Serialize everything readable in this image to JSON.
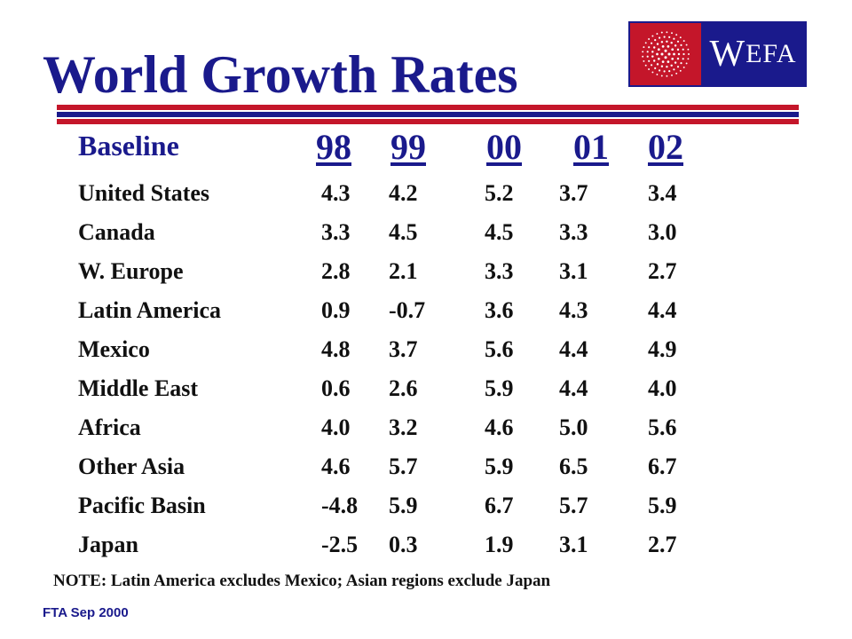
{
  "title": "World Growth Rates",
  "logo": {
    "brand_big": "W",
    "brand_small": "EFA"
  },
  "table": {
    "header_label": "Baseline",
    "years": [
      "98",
      "99",
      "00",
      "01",
      "02"
    ],
    "rows": [
      {
        "region": "United States",
        "values": [
          "4.3",
          "4.2",
          "5.2",
          "3.7",
          "3.4"
        ]
      },
      {
        "region": "Canada",
        "values": [
          "3.3",
          "4.5",
          "4.5",
          "3.3",
          "3.0"
        ]
      },
      {
        "region": "W. Europe",
        "values": [
          "2.8",
          "2.1",
          "3.3",
          "3.1",
          "2.7"
        ]
      },
      {
        "region": "Latin America",
        "values": [
          "0.9",
          "-0.7",
          "3.6",
          "4.3",
          "4.4"
        ]
      },
      {
        "region": "Mexico",
        "values": [
          "4.8",
          "3.7",
          "5.6",
          "4.4",
          "4.9"
        ]
      },
      {
        "region": "Middle East",
        "values": [
          "0.6",
          "2.6",
          "5.9",
          "4.4",
          "4.0"
        ]
      },
      {
        "region": "Africa",
        "values": [
          "4.0",
          "3.2",
          "4.6",
          "5.0",
          "5.6"
        ]
      },
      {
        "region": "Other Asia",
        "values": [
          "4.6",
          "5.7",
          "5.9",
          "6.5",
          "6.7"
        ]
      },
      {
        "region": "Pacific Basin",
        "values": [
          "-4.8",
          "5.9",
          "6.7",
          "5.7",
          "5.9"
        ]
      },
      {
        "region": "Japan",
        "values": [
          "-2.5",
          "0.3",
          "1.9",
          "3.1",
          "2.7"
        ]
      }
    ]
  },
  "note": "NOTE: Latin America excludes Mexico; Asian regions exclude Japan",
  "footer": "FTA Sep 2000",
  "colors": {
    "navy": "#1a1a8c",
    "red": "#c4162a"
  }
}
